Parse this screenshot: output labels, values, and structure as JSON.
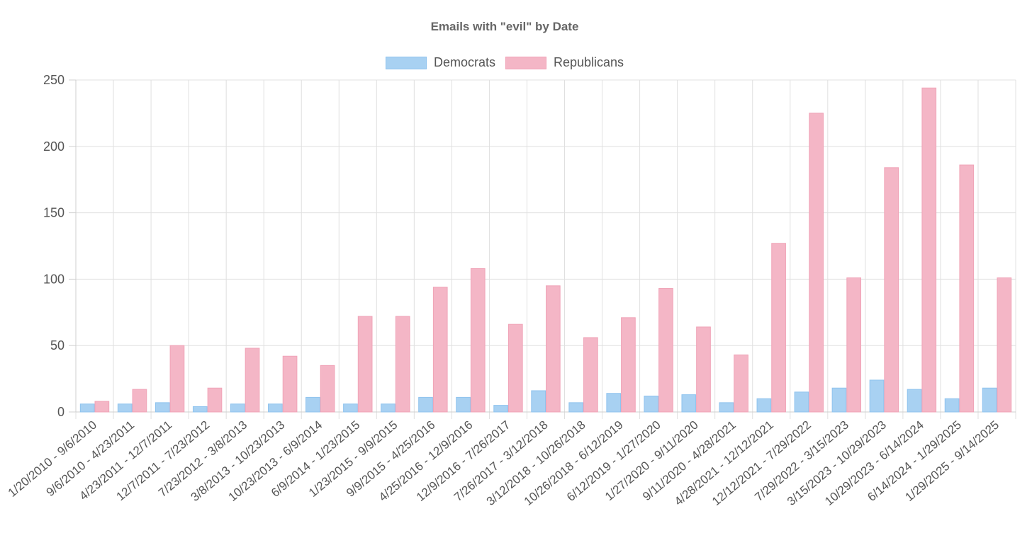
{
  "chart_data": {
    "type": "bar",
    "title": "Emails with \"evil\" by Date",
    "xlabel": "",
    "ylabel": "",
    "ylim": [
      0,
      250
    ],
    "yticks": [
      0,
      50,
      100,
      150,
      200,
      250
    ],
    "grid": true,
    "legend_position": "top-center",
    "categories": [
      "1/20/2010 - 9/6/2010",
      "9/6/2010 - 4/23/2011",
      "4/23/2011 - 12/7/2011",
      "12/7/2011 - 7/23/2012",
      "7/23/2012 - 3/8/2013",
      "3/8/2013 - 10/23/2013",
      "10/23/2013 - 6/9/2014",
      "6/9/2014 - 1/23/2015",
      "1/23/2015 - 9/9/2015",
      "9/9/2015 - 4/25/2016",
      "4/25/2016 - 12/9/2016",
      "12/9/2016 - 7/26/2017",
      "7/26/2017 - 3/12/2018",
      "3/12/2018 - 10/26/2018",
      "10/26/2018 - 6/12/2019",
      "6/12/2019 - 1/27/2020",
      "1/27/2020 - 9/11/2020",
      "9/11/2020 - 4/28/2021",
      "4/28/2021 - 12/12/2021",
      "12/12/2021 - 7/29/2022",
      "7/29/2022 - 3/15/2023",
      "3/15/2023 - 10/29/2023",
      "10/29/2023 - 6/14/2024",
      "6/14/2024 - 1/29/2025",
      "1/29/2025 - 9/14/2025"
    ],
    "series": [
      {
        "name": "Democrats",
        "fill": "#a8d1f2",
        "stroke": "#8fc3ee",
        "values": [
          6,
          6,
          7,
          4,
          6,
          6,
          11,
          6,
          6,
          11,
          11,
          5,
          16,
          7,
          14,
          12,
          13,
          7,
          10,
          15,
          18,
          24,
          17,
          10,
          18
        ]
      },
      {
        "name": "Republicans",
        "fill": "#f4b6c6",
        "stroke": "#f0a3b7",
        "values": [
          8,
          17,
          50,
          18,
          48,
          42,
          35,
          72,
          72,
          94,
          108,
          66,
          95,
          56,
          71,
          93,
          64,
          43,
          127,
          225,
          101,
          184,
          244,
          186,
          101
        ]
      }
    ]
  }
}
